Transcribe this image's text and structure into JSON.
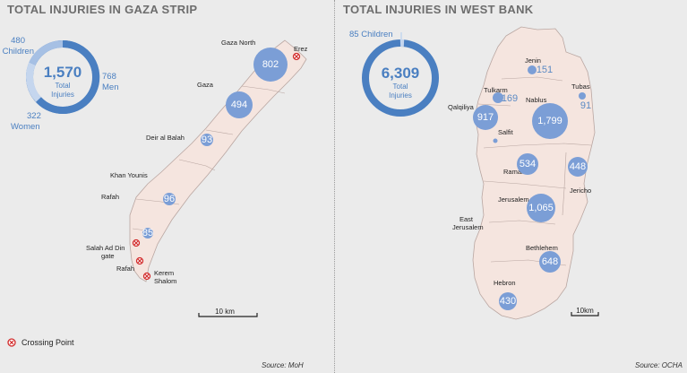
{
  "gaza": {
    "title": "TOTAL INJURIES IN GAZA STRIP",
    "total": "1,570",
    "total_label_1": "Total",
    "total_label_2": "Injuries",
    "men_value": "768",
    "men_label": "Men",
    "women_value": "322",
    "women_label": "Women",
    "children_value": "480",
    "children_label": "Children",
    "breakdown": {
      "men": 768,
      "women": 322,
      "children": 480
    },
    "places": [
      "Gaza North",
      "Gaza",
      "Deir al Balah",
      "Khan Younis",
      "Rafah",
      "Erez",
      "Salah Ad Din",
      "gate",
      "Rafah",
      "Kerem",
      "Shalom"
    ],
    "bubbles": [
      {
        "name": "Gaza North",
        "value": "802"
      },
      {
        "name": "Gaza",
        "value": "494"
      },
      {
        "name": "Deir al Balah",
        "value": "93"
      },
      {
        "name": "Khan Younis",
        "value": "96"
      },
      {
        "name": "Rafah",
        "value": "85"
      }
    ],
    "scale": "10 km",
    "source": "Source: MoH"
  },
  "westbank": {
    "title": "TOTAL INJURIES IN WEST BANK",
    "total": "6,309",
    "total_label_1": "Total",
    "total_label_2": "Injuries",
    "children_label": "85 Children",
    "breakdown": {
      "children": 85,
      "total": 6309
    },
    "bubbles": [
      {
        "name": "Jenin",
        "value": "151"
      },
      {
        "name": "Tulkarm",
        "value": "169"
      },
      {
        "name": "Tubas",
        "value": "91"
      },
      {
        "name": "Nablus",
        "value": "1,799"
      },
      {
        "name": "Qalqiliya",
        "value": "917"
      },
      {
        "name": "Salfit",
        "value": ""
      },
      {
        "name": "Ramallah",
        "value": "534"
      },
      {
        "name": "Jericho",
        "value": "448"
      },
      {
        "name": "Jerusalem",
        "value": "1,065"
      },
      {
        "name": "Bethlehem",
        "value": "648"
      },
      {
        "name": "Hebron",
        "value": "430"
      }
    ],
    "other_labels": [
      "East",
      "Jerusalem"
    ],
    "scale": "10km",
    "source": "Source: OCHA"
  },
  "legend": {
    "crossing_point": "Crossing Point",
    "icon": "crossing-point-icon"
  },
  "colors": {
    "bubble": "#7b9ed6",
    "donut_dark": "#4a7fc1",
    "donut_mid": "#8eb0dd",
    "donut_light": "#c5d6ee",
    "territory": "#f5e5df",
    "border": "#b9a6a1",
    "crossing": "#d22b2b",
    "background": "#ebebeb"
  }
}
